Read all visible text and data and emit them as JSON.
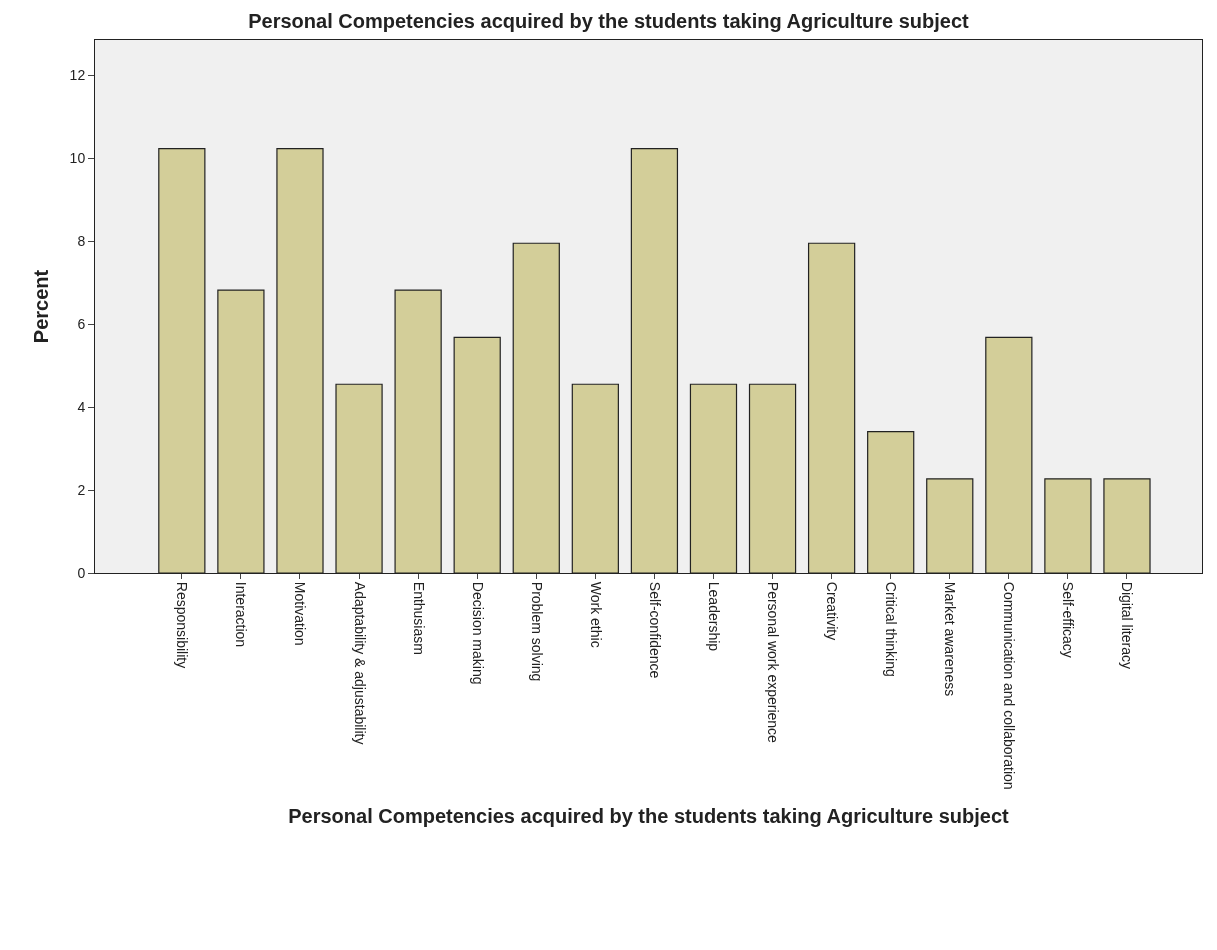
{
  "chart_data": {
    "type": "bar",
    "title": "Personal Competencies acquired by the students taking Agriculture subject",
    "xlabel": "Personal Competencies acquired by the students taking Agriculture subject",
    "ylabel": "Percent",
    "categories": [
      "Responsibility",
      "Interaction",
      "Motivation",
      "Adaptability & adjustability",
      "Enthusiasm",
      "Decision making",
      "Problem solving",
      "Work ethic",
      "Self-confidence",
      "Leadership",
      "Personal work experience",
      "Creativity",
      "Critical thinking",
      "Market awareness",
      "Communication and collaboration",
      "Self-efficacy",
      "Digital literacy"
    ],
    "values": [
      10.23,
      6.82,
      10.23,
      4.55,
      6.82,
      5.68,
      7.95,
      4.55,
      10.23,
      4.55,
      4.55,
      7.95,
      3.41,
      2.27,
      5.68,
      2.27,
      2.27
    ],
    "color": "#d3ce99",
    "ylim": [
      0,
      12.85
    ],
    "yticks": [
      0,
      2,
      4,
      6,
      8,
      10,
      12
    ],
    "grid": false
  }
}
